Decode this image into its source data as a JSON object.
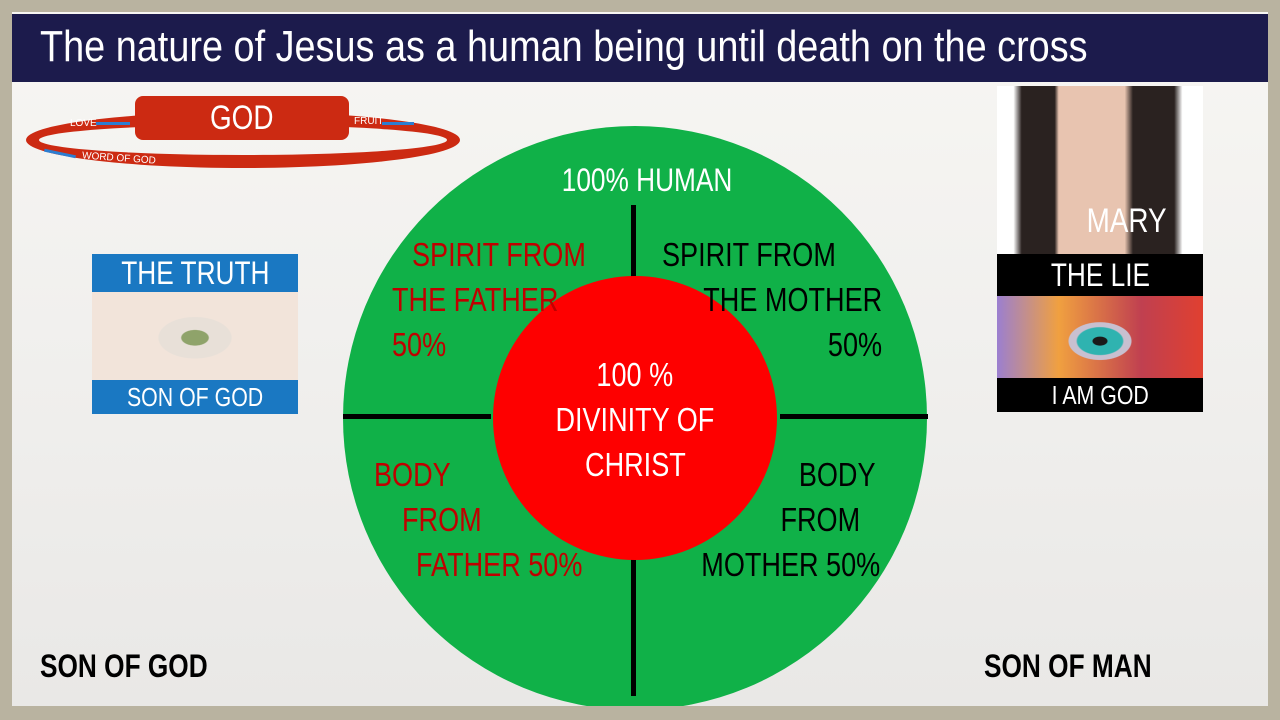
{
  "title": "The nature of Jesus as a human being until death on the cross",
  "god_cycle": {
    "center": "GOD",
    "love": "LOVE",
    "fruit": "FRUIT",
    "word": "WORD OF GOD"
  },
  "circle": {
    "outer_label": "100% HUMAN",
    "inner": [
      "100 %",
      "DIVINITY OF",
      "CHRIST"
    ],
    "top_left": [
      "SPIRIT FROM",
      "THE FATHER",
      "50%"
    ],
    "top_right": [
      "SPIRIT FROM",
      "THE MOTHER",
      "50%"
    ],
    "bottom_left": [
      "BODY",
      "FROM",
      "FATHER 50%"
    ],
    "bottom_right": [
      "BODY",
      "FROM",
      "MOTHER 50%"
    ]
  },
  "left_panel": {
    "top": "THE TRUTH",
    "bottom": "SON OF GOD",
    "image": "green-eye-photo"
  },
  "right_panel": {
    "name": "MARY",
    "top": "THE LIE",
    "bottom": "I AM GOD",
    "image": "woman-photo and colorful-eye"
  },
  "footer": {
    "left": "SON OF GOD",
    "right": "SON OF MAN"
  },
  "colors": {
    "title_bar": "#1c1b4c",
    "green": "#10b148",
    "red": "#fe0000",
    "god_red": "#cc2a12",
    "blue": "#1a78c2"
  }
}
